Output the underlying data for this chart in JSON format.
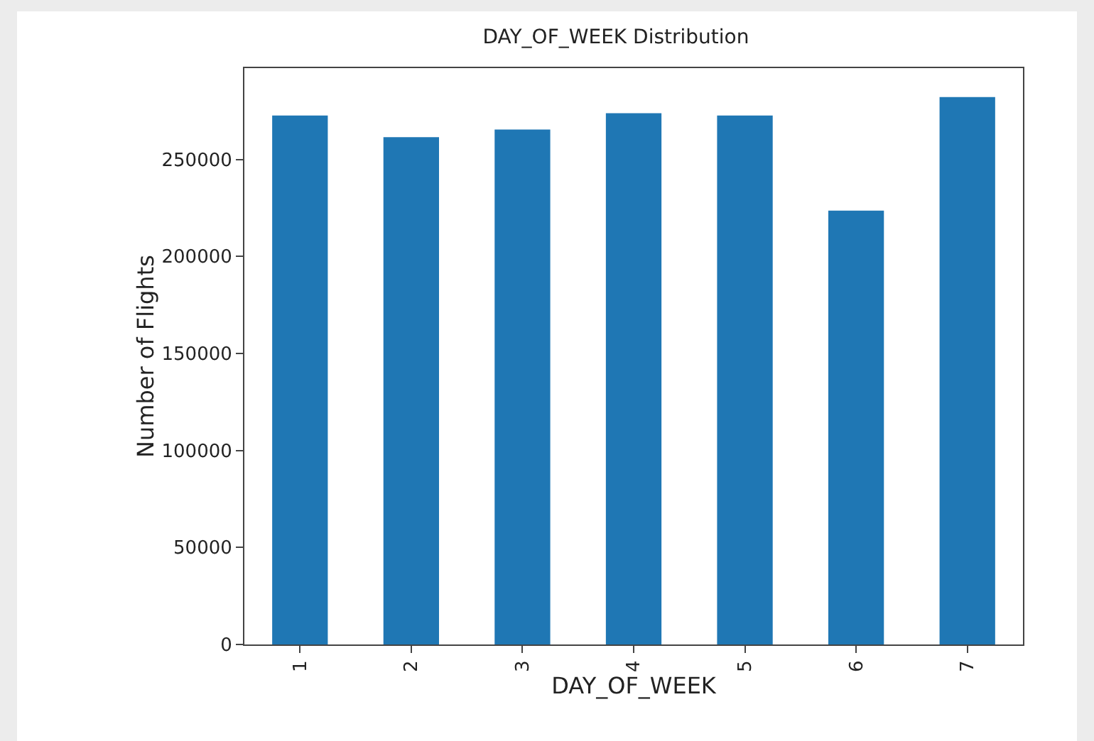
{
  "chart_data": {
    "type": "bar",
    "title": "DAY_OF_WEEK Distribution",
    "xlabel": "DAY_OF_WEEK",
    "ylabel": "Number of Flights",
    "categories": [
      "1",
      "2",
      "3",
      "4",
      "5",
      "6",
      "7"
    ],
    "values": [
      272600,
      261400,
      265400,
      273800,
      272600,
      223600,
      282100
    ],
    "color": "#1f77b4",
    "ylim": [
      0,
      297000
    ],
    "yticks": [
      0,
      50000,
      100000,
      150000,
      200000,
      250000
    ],
    "grid": false
  }
}
